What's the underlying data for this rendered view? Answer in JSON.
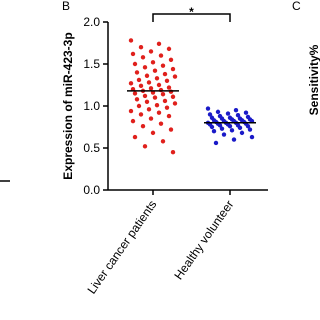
{
  "panel_labels": [
    "B",
    "C"
  ],
  "chart_data": {
    "type": "strip",
    "ylabel": "Expression of miR-423-3p",
    "categories": [
      "Liver cancer patients",
      "Healthy volunteer"
    ],
    "significance": "*",
    "ylim": [
      0,
      2
    ],
    "yticks": [
      {
        "value": 0,
        "label": "0.0"
      },
      0.5,
      {
        "value": 1,
        "label": "1.0"
      },
      1.5,
      {
        "value": 2,
        "label": "2.0"
      }
    ],
    "series": [
      {
        "color": "#e0201c",
        "mean": 1.18,
        "values": [
          1.78,
          1.74,
          1.7,
          1.68,
          1.65,
          1.62,
          1.6,
          1.58,
          1.55,
          1.52,
          1.5,
          1.48,
          1.46,
          1.44,
          1.42,
          1.4,
          1.38,
          1.36,
          1.35,
          1.33,
          1.31,
          1.3,
          1.28,
          1.27,
          1.25,
          1.24,
          1.22,
          1.21,
          1.2,
          1.19,
          1.18,
          1.17,
          1.16,
          1.15,
          1.14,
          1.12,
          1.11,
          1.1,
          1.08,
          1.06,
          1.05,
          1.03,
          1.01,
          1.0,
          0.98,
          0.96,
          0.94,
          0.92,
          0.9,
          0.88,
          0.85,
          0.82,
          0.79,
          0.76,
          0.72,
          0.68,
          0.63,
          0.58,
          0.52,
          0.45
        ]
      },
      {
        "color": "#1a1ac8",
        "mean": 0.8,
        "values": [
          0.97,
          0.95,
          0.93,
          0.92,
          0.91,
          0.9,
          0.89,
          0.88,
          0.87,
          0.86,
          0.86,
          0.85,
          0.85,
          0.84,
          0.84,
          0.83,
          0.83,
          0.82,
          0.82,
          0.82,
          0.81,
          0.81,
          0.8,
          0.8,
          0.8,
          0.79,
          0.79,
          0.78,
          0.78,
          0.77,
          0.77,
          0.76,
          0.76,
          0.75,
          0.74,
          0.73,
          0.72,
          0.71,
          0.7,
          0.68,
          0.66,
          0.63,
          0.6,
          0.56
        ]
      }
    ],
    "right_ylabel": "Sensitivity%"
  }
}
